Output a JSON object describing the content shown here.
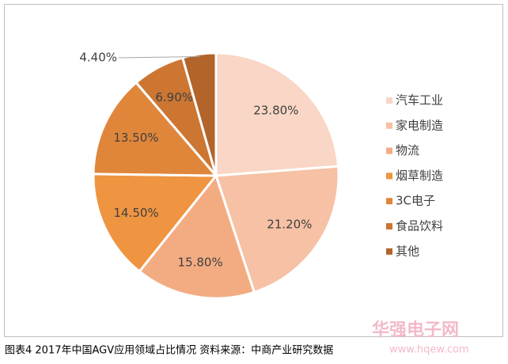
{
  "chart_data": {
    "type": "pie",
    "categories": [
      "汽车工业",
      "家电制造",
      "物流",
      "烟草制造",
      "3C电子",
      "食品饮料",
      "其他"
    ],
    "values": [
      23.8,
      21.2,
      15.8,
      14.5,
      13.5,
      6.9,
      4.4
    ],
    "value_labels": [
      "23.80%",
      "21.20%",
      "15.80%",
      "14.50%",
      "13.50%",
      "6.90%",
      "4.40%"
    ],
    "colors": [
      "#f9d6c5",
      "#f6c1a5",
      "#f3ac82",
      "#ef9440",
      "#e0863a",
      "#cc7632",
      "#b2642a"
    ],
    "legend": "right"
  },
  "caption": "图表4  2017年中国AGV应用领域占比情况  资料来源：中商产业研究数据",
  "watermark": {
    "name": "华强电子网",
    "url": "www.hqew.com"
  }
}
